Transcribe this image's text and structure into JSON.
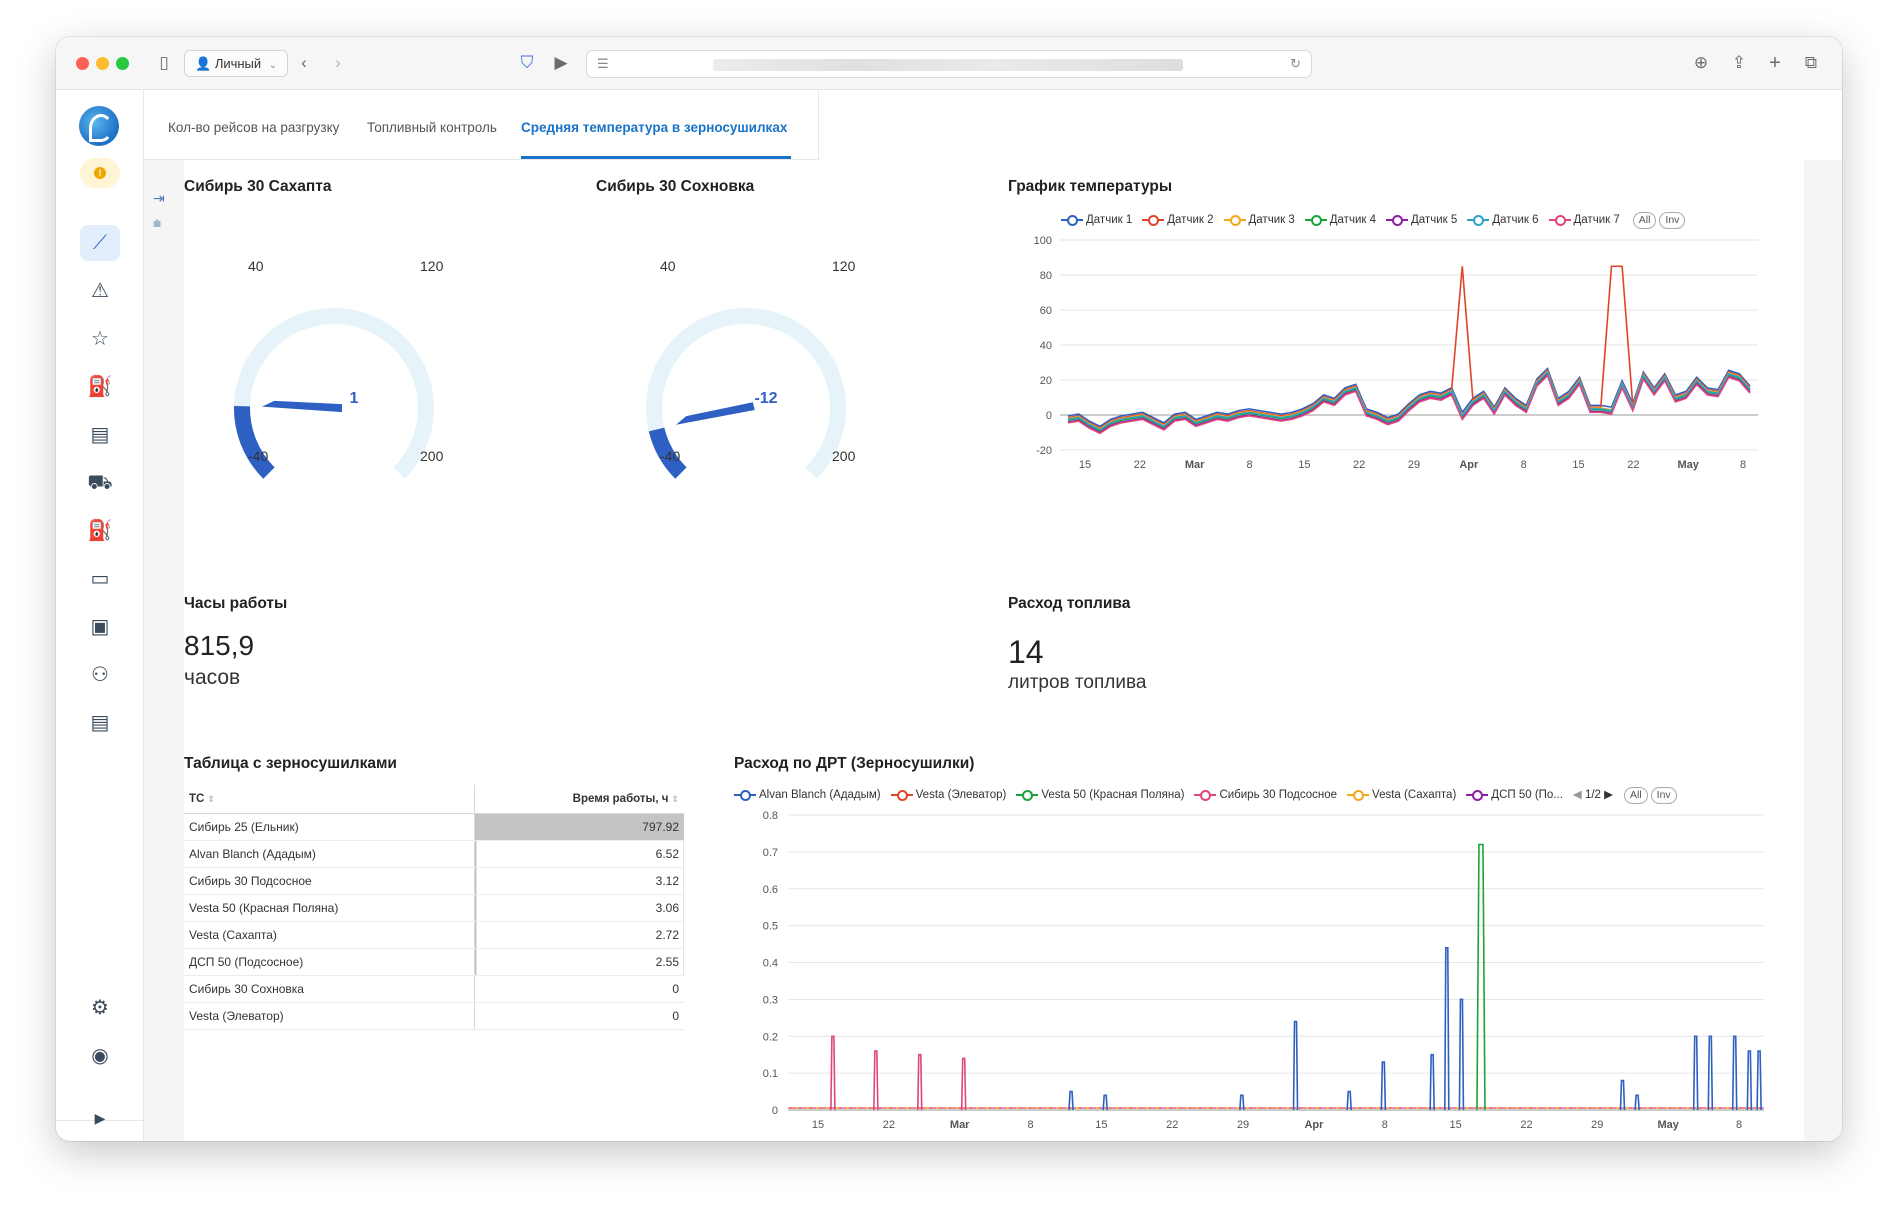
{
  "browser": {
    "profile_label": "Личный"
  },
  "tabs": [
    {
      "label": "Кол-во рейсов на разгрузку"
    },
    {
      "label": "Топливный контроль"
    },
    {
      "label": "Средняя температура в зерносушилках"
    }
  ],
  "gauges": [
    {
      "title": "Сибирь 30 Сахапта",
      "value": 1,
      "value_label": "1",
      "min_label": "-40",
      "max_label": "200",
      "t1_label": "40",
      "t2_label": "120",
      "min": -40,
      "max": 200
    },
    {
      "title": "Сибирь 30 Сохновка",
      "value": -12,
      "value_label": "-12",
      "min_label": "-40",
      "max_label": "200",
      "t1_label": "40",
      "t2_label": "120",
      "min": -40,
      "max": 200
    }
  ],
  "colors": {
    "accent": "#1a73c8",
    "gauge_fill": "#2e5fc2",
    "gauge_track": "#e6f3f9"
  },
  "stats": {
    "hours_title": "Часы работы",
    "hours_value": "815,9",
    "hours_unit": "часов",
    "fuel_title": "Расход топлива",
    "fuel_value": "14",
    "fuel_unit": "литров топлива"
  },
  "table": {
    "title": "Таблица с зерносушилками",
    "col1": "ТС",
    "col2": "Время работы, ч",
    "rows": [
      {
        "name": "Сибирь 25 (Ельник)",
        "value": "797.92"
      },
      {
        "name": "Alvan Blanch (Ададым)",
        "value": "6.52"
      },
      {
        "name": "Сибирь 30 Подсосное",
        "value": "3.12"
      },
      {
        "name": "Vesta 50 (Красная Поляна)",
        "value": "3.06"
      },
      {
        "name": "Vesta (Сахапта)",
        "value": "2.72"
      },
      {
        "name": "ДСП 50 (Подсосное)",
        "value": "2.55"
      },
      {
        "name": "Сибирь 30 Сохновка",
        "value": "0"
      },
      {
        "name": "Vesta (Элеватор)",
        "value": "0"
      }
    ]
  },
  "chart_data": [
    {
      "type": "line",
      "title": "График температуры",
      "x_ticks": [
        "15",
        "22",
        "Mar",
        "8",
        "15",
        "22",
        "29",
        "Apr",
        "8",
        "15",
        "22",
        "May",
        "8"
      ],
      "ylim": [
        -20,
        100
      ],
      "y_ticks": [
        "100",
        "80",
        "60",
        "40",
        "20",
        "0",
        "-20"
      ],
      "legend_extra": [
        "All",
        "Inv"
      ],
      "base_values": [
        -2,
        -1,
        -5,
        -8,
        -4,
        -2,
        -1,
        0,
        -3,
        -6,
        -1,
        0,
        -4,
        -2,
        0,
        -1,
        1,
        2,
        1,
        0,
        -1,
        0,
        2,
        5,
        10,
        8,
        14,
        16,
        2,
        0,
        -3,
        -1,
        5,
        10,
        12,
        11,
        14,
        0,
        8,
        12,
        3,
        14,
        8,
        4,
        19,
        25,
        8,
        12,
        20,
        4,
        4,
        3,
        18,
        5,
        23,
        14,
        22,
        10,
        12,
        20,
        14,
        13,
        24,
        22,
        15
      ],
      "series": [
        {
          "name": "Датчик 1",
          "color": "#2e5fc2",
          "offset": 1.5
        },
        {
          "name": "Датчик 2",
          "color": "#e0442b",
          "offset": 0.5
        },
        {
          "name": "Датчик 3",
          "color": "#f2a71b",
          "offset": 0
        },
        {
          "name": "Датчик 4",
          "color": "#1aa33a",
          "offset": -1
        },
        {
          "name": "Датчик 5",
          "color": "#8b1fa3",
          "offset": -2
        },
        {
          "name": "Датчик 6",
          "color": "#2ba3c7",
          "offset": -0.5
        },
        {
          "name": "Датчик 7",
          "color": "#e0457d",
          "offset": -2.5
        }
      ],
      "spikes": [
        {
          "series": 1,
          "index": 37,
          "value": 85
        },
        {
          "series": 1,
          "index": 51,
          "value": 85
        },
        {
          "series": 1,
          "index": 52,
          "value": 85
        }
      ]
    },
    {
      "type": "line",
      "title": "Расход по ДРТ (Зерносушилки)",
      "x_ticks": [
        "15",
        "22",
        "Mar",
        "8",
        "15",
        "22",
        "29",
        "Apr",
        "8",
        "15",
        "22",
        "29",
        "May",
        "8"
      ],
      "ylim": [
        0,
        0.8
      ],
      "y_ticks": [
        "0.8",
        "0.7",
        "0.6",
        "0.5",
        "0.4",
        "0.3",
        "0.2",
        "0.1",
        "0"
      ],
      "legend_page": "1/2",
      "legend_extra": [
        "All",
        "Inv"
      ],
      "series": [
        {
          "name": "Alvan Blanch (Ададым)",
          "color": "#2e5fc2"
        },
        {
          "name": "Vesta (Элеватор)",
          "color": "#e0442b"
        },
        {
          "name": "Vesta 50 (Красная Поляна)",
          "color": "#1aa33a"
        },
        {
          "name": "Сибирь 30 Подсосное",
          "color": "#e0457d"
        },
        {
          "name": "Vesta (Сахапта)",
          "color": "#f2a71b"
        },
        {
          "name": "ДСП 50 (По...",
          "color": "#8b1fa3"
        }
      ],
      "spikes": [
        {
          "series": 3,
          "x": 0.046,
          "value": 0.2
        },
        {
          "series": 3,
          "x": 0.09,
          "value": 0.16
        },
        {
          "series": 3,
          "x": 0.135,
          "value": 0.15
        },
        {
          "series": 3,
          "x": 0.18,
          "value": 0.14
        },
        {
          "series": 0,
          "x": 0.29,
          "value": 0.05
        },
        {
          "series": 0,
          "x": 0.325,
          "value": 0.04
        },
        {
          "series": 0,
          "x": 0.465,
          "value": 0.04
        },
        {
          "series": 0,
          "x": 0.52,
          "value": 0.24
        },
        {
          "series": 0,
          "x": 0.575,
          "value": 0.05
        },
        {
          "series": 0,
          "x": 0.61,
          "value": 0.13
        },
        {
          "series": 0,
          "x": 0.66,
          "value": 0.15
        },
        {
          "series": 0,
          "x": 0.675,
          "value": 0.44
        },
        {
          "series": 0,
          "x": 0.69,
          "value": 0.3
        },
        {
          "series": 2,
          "x": 0.71,
          "value": 0.72
        },
        {
          "series": 0,
          "x": 0.855,
          "value": 0.08
        },
        {
          "series": 0,
          "x": 0.87,
          "value": 0.04
        },
        {
          "series": 0,
          "x": 0.93,
          "value": 0.2
        },
        {
          "series": 0,
          "x": 0.945,
          "value": 0.2
        },
        {
          "series": 0,
          "x": 0.97,
          "value": 0.2
        },
        {
          "series": 0,
          "x": 0.985,
          "value": 0.16
        },
        {
          "series": 0,
          "x": 0.995,
          "value": 0.16
        }
      ]
    }
  ]
}
